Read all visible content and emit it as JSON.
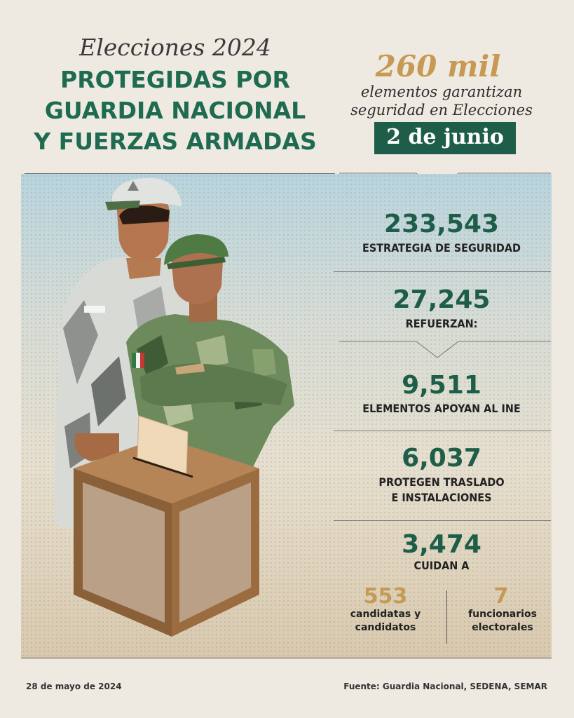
{
  "header": {
    "subtitle": "Elecciones 2024",
    "title_lines": [
      "PROTEGIDAS POR",
      "GUARDIA NACIONAL",
      "Y FUERZAS ARMADAS"
    ]
  },
  "summary": {
    "number": "260 mil",
    "text_lines": [
      "elementos garantizan",
      "seguridad en Elecciones"
    ],
    "date": "2 de junio"
  },
  "stats": [
    {
      "number": "233,543",
      "label_lines": [
        "ESTRATEGIA DE SEGURIDAD"
      ]
    },
    {
      "number": "27,245",
      "label_lines": [
        "REFUERZAN:"
      ]
    },
    {
      "number": "9,511",
      "label_lines": [
        "ELEMENTOS APOYAN AL INE"
      ]
    },
    {
      "number": "6,037",
      "label_lines": [
        "PROTEGEN TRASLADO",
        "E INSTALACIONES"
      ]
    },
    {
      "number": "3,474",
      "label_lines": [
        "CUIDAN A"
      ]
    }
  ],
  "sub_stats": [
    {
      "number": "553",
      "label_lines": [
        "candidatas y",
        "candidatos"
      ]
    },
    {
      "number": "7",
      "label_lines": [
        "funcionarios",
        "electorales"
      ]
    }
  ],
  "footer": {
    "date": "28 de mayo de 2024",
    "source": "Fuente: Guardia Nacional, SEDENA, SEMAR"
  },
  "colors": {
    "green": "#1e5e48",
    "gold": "#c79a54",
    "background": "#eeeae2"
  }
}
